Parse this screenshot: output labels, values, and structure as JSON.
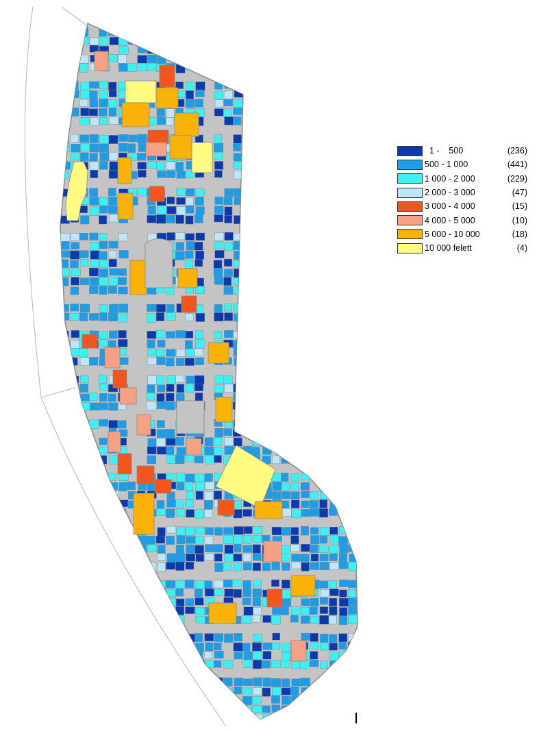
{
  "legend": {
    "items": [
      {
        "range": "  1 -    500",
        "count": "(236)",
        "color": "#0a3aad"
      },
      {
        "range": "500 - 1 000",
        "count": "(441)",
        "color": "#1e9ce6"
      },
      {
        "range": "1 000 - 2 000",
        "count": "(229)",
        "color": "#3ff0f2"
      },
      {
        "range": "2 000 - 3 000",
        "count": "(47)",
        "color": "#bfe6f8"
      },
      {
        "range": "3 000 - 4 000",
        "count": "(15)",
        "color": "#f2561d"
      },
      {
        "range": "4 000 - 5 000",
        "count": "(10)",
        "color": "#f7a184"
      },
      {
        "range": "5 000 - 10 000",
        "count": "(18)",
        "color": "#f9b208"
      },
      {
        "range": "10 000 felett",
        "count": "(4)",
        "color": "#fffb82"
      }
    ]
  },
  "district_label": "I",
  "colors": {
    "street": "#c4c4c4",
    "outline": "#8a8a8a",
    "background": "#ffffff"
  }
}
